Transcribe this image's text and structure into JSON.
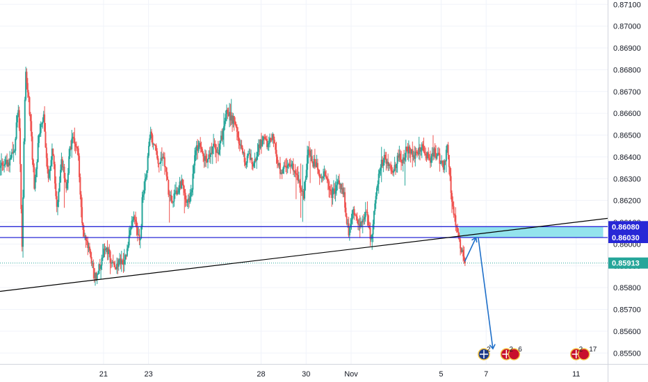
{
  "chart_data": {
    "type": "candlestick",
    "instrument": "",
    "title": "",
    "xlabel": "",
    "ylabel": "",
    "ylim": [
      0.8545,
      0.8712
    ],
    "y_ticks": [
      "0.85500",
      "0.85600",
      "0.85700",
      "0.85800",
      "0.85900",
      "0.86000",
      "0.86100",
      "0.86200",
      "0.86300",
      "0.86400",
      "0.86500",
      "0.86600",
      "0.86700",
      "0.86800",
      "0.86900",
      "0.87000",
      "0.87100"
    ],
    "x_ticks": [
      {
        "label": "21",
        "day": 21
      },
      {
        "label": "23",
        "day": 23
      },
      {
        "label": "28",
        "day": 28
      },
      {
        "label": "30",
        "day": 30
      },
      {
        "label": "Nov",
        "day": 32
      },
      {
        "label": "5",
        "day": 36
      },
      {
        "label": "7",
        "day": 38
      },
      {
        "label": "11",
        "day": 42
      }
    ],
    "x_domain_days": [
      16.4,
      43.4
    ],
    "up_color": "#26a69a",
    "down_color": "#ef5350",
    "grid": true,
    "price_path": [
      [
        16.4,
        0.8635
      ],
      [
        16.8,
        0.8638
      ],
      [
        17.05,
        0.8642
      ],
      [
        17.25,
        0.8665
      ],
      [
        17.4,
        0.86
      ],
      [
        17.55,
        0.868
      ],
      [
        17.75,
        0.866
      ],
      [
        17.95,
        0.8625
      ],
      [
        18.15,
        0.865
      ],
      [
        18.35,
        0.866
      ],
      [
        18.55,
        0.863
      ],
      [
        18.75,
        0.8645
      ],
      [
        18.95,
        0.8615
      ],
      [
        19.15,
        0.864
      ],
      [
        19.35,
        0.8625
      ],
      [
        19.55,
        0.8645
      ],
      [
        19.7,
        0.865
      ],
      [
        19.9,
        0.864
      ],
      [
        20.1,
        0.8605
      ],
      [
        20.3,
        0.86
      ],
      [
        20.5,
        0.859
      ],
      [
        20.7,
        0.8584
      ],
      [
        20.9,
        0.8592
      ],
      [
        21.1,
        0.86
      ],
      [
        21.3,
        0.8594
      ],
      [
        21.5,
        0.8588
      ],
      [
        21.7,
        0.8592
      ],
      [
        21.9,
        0.859
      ],
      [
        22.1,
        0.86
      ],
      [
        22.3,
        0.8612
      ],
      [
        22.5,
        0.8608
      ],
      [
        22.65,
        0.86
      ],
      [
        22.75,
        0.8622
      ],
      [
        22.9,
        0.863
      ],
      [
        23.1,
        0.865
      ],
      [
        23.3,
        0.8645
      ],
      [
        23.5,
        0.8636
      ],
      [
        23.7,
        0.864
      ],
      [
        23.9,
        0.8625
      ],
      [
        24.1,
        0.862
      ],
      [
        24.3,
        0.8625
      ],
      [
        24.5,
        0.8628
      ],
      [
        24.7,
        0.8618
      ],
      [
        24.9,
        0.8622
      ],
      [
        25.1,
        0.8642
      ],
      [
        25.3,
        0.8648
      ],
      [
        25.5,
        0.8638
      ],
      [
        25.7,
        0.864
      ],
      [
        25.9,
        0.8645
      ],
      [
        26.1,
        0.8642
      ],
      [
        26.3,
        0.865
      ],
      [
        26.5,
        0.8662
      ],
      [
        26.7,
        0.8658
      ],
      [
        26.9,
        0.8655
      ],
      [
        27.1,
        0.8645
      ],
      [
        27.3,
        0.8638
      ],
      [
        27.5,
        0.864
      ],
      [
        27.7,
        0.8636
      ],
      [
        27.9,
        0.8645
      ],
      [
        28.1,
        0.8648
      ],
      [
        28.3,
        0.8646
      ],
      [
        28.5,
        0.865
      ],
      [
        28.7,
        0.864
      ],
      [
        28.9,
        0.8632
      ],
      [
        29.1,
        0.8635
      ],
      [
        29.3,
        0.8638
      ],
      [
        29.5,
        0.8632
      ],
      [
        29.7,
        0.8628
      ],
      [
        29.9,
        0.8622
      ],
      [
        30.1,
        0.8642
      ],
      [
        30.3,
        0.8638
      ],
      [
        30.5,
        0.8635
      ],
      [
        30.7,
        0.863
      ],
      [
        30.9,
        0.8632
      ],
      [
        31.1,
        0.8622
      ],
      [
        31.3,
        0.8625
      ],
      [
        31.5,
        0.8628
      ],
      [
        31.7,
        0.8622
      ],
      [
        31.9,
        0.8605
      ],
      [
        32.1,
        0.8615
      ],
      [
        32.3,
        0.861
      ],
      [
        32.5,
        0.8608
      ],
      [
        32.7,
        0.8615
      ],
      [
        32.9,
        0.86
      ],
      [
        33.1,
        0.862
      ],
      [
        33.3,
        0.8635
      ],
      [
        33.5,
        0.864
      ],
      [
        33.7,
        0.8635
      ],
      [
        33.9,
        0.8632
      ],
      [
        34.1,
        0.864
      ],
      [
        34.3,
        0.8638
      ],
      [
        34.5,
        0.8644
      ],
      [
        34.7,
        0.8642
      ],
      [
        34.9,
        0.864
      ],
      [
        35.1,
        0.8645
      ],
      [
        35.3,
        0.8643
      ],
      [
        35.5,
        0.8638
      ],
      [
        35.7,
        0.8642
      ],
      [
        35.9,
        0.864
      ],
      [
        36.1,
        0.8635
      ],
      [
        36.3,
        0.8644
      ],
      [
        36.45,
        0.8625
      ],
      [
        36.55,
        0.8617
      ],
      [
        36.7,
        0.8607
      ],
      [
        36.85,
        0.86
      ],
      [
        37.0,
        0.8594
      ],
      [
        37.05,
        0.8591
      ]
    ],
    "last_price": 0.85913,
    "annotations": {
      "horizontal_levels": [
        {
          "label": "0.86080",
          "price": 0.8608,
          "color": "#2727d6"
        },
        {
          "label": "0.86030",
          "price": 0.8603,
          "color": "#2727d6"
        }
      ],
      "current_price_tag": {
        "label": "0.85913",
        "price": 0.85913,
        "color": "#26a69a"
      },
      "trendline": {
        "from": [
          16.4,
          0.85783
        ],
        "to": [
          43.4,
          0.86118
        ],
        "color": "#000000"
      },
      "zone": {
        "days": [
          36.8,
          43.2
        ],
        "prices": [
          0.8603,
          0.8608
        ],
        "color": "#80deea"
      },
      "arrows": [
        {
          "from": [
            37.05,
            0.8592
          ],
          "to": [
            37.55,
            0.8603
          ]
        },
        {
          "from": [
            37.65,
            0.8603
          ],
          "to": [
            38.3,
            0.8552
          ]
        }
      ]
    },
    "events": [
      {
        "day": 37.9,
        "text": "2"
      },
      {
        "day": 38.9,
        "text": "2"
      },
      {
        "day": 39.3,
        "text": "6"
      },
      {
        "day": 42.0,
        "text": "2"
      },
      {
        "day": 42.45,
        "text": "17"
      }
    ]
  }
}
